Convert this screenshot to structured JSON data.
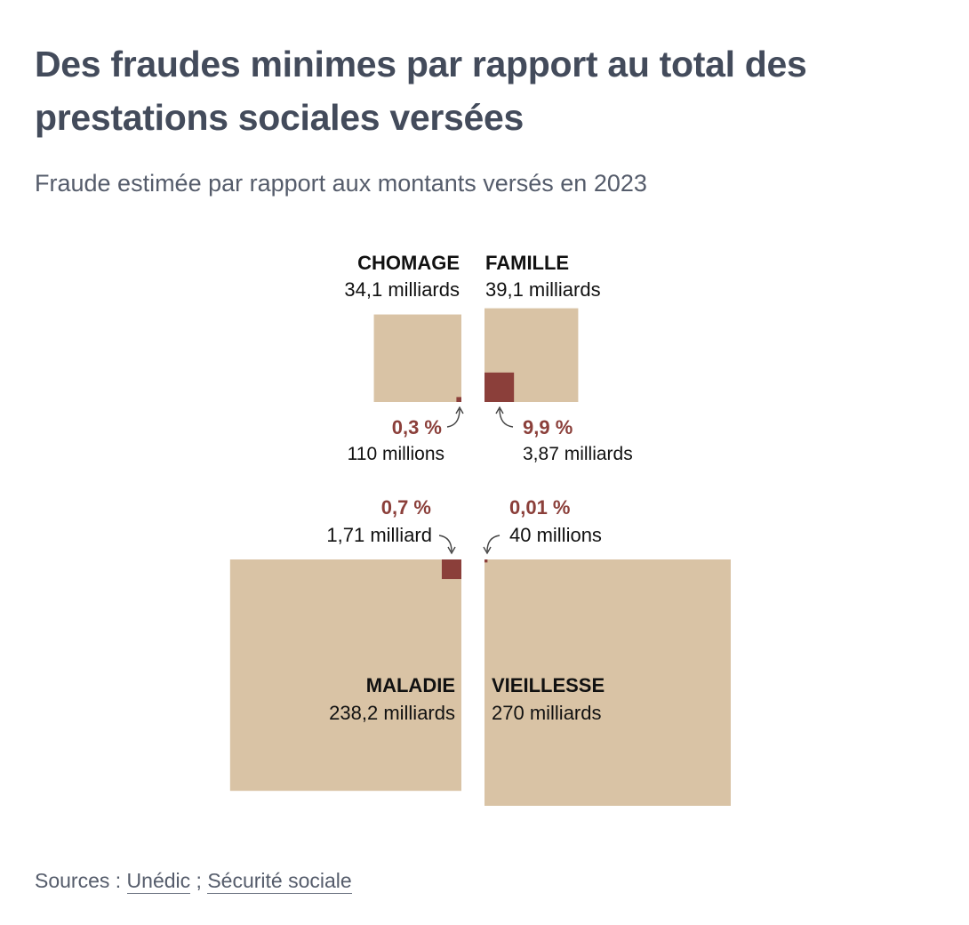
{
  "header": {
    "title": "Des fraudes minimes par rapport au total des prestations sociales versées",
    "subtitle": "Fraude estimée par rapport aux montants versés en 2023"
  },
  "footer": {
    "prefix": "Sources :",
    "sources": [
      "Unédic",
      "Sécurité sociale"
    ],
    "separator": ";"
  },
  "colors": {
    "total": "#d9c3a5",
    "fraud": "#8b3f3a",
    "title": "#434b5b",
    "text": "#111111"
  },
  "chart_data": {
    "type": "proportional-area",
    "title": "Des fraudes minimes par rapport au total des prestations sociales versées",
    "subtitle": "Fraude estimée par rapport aux montants versés en 2023",
    "unit": "milliards d'euros",
    "series": [
      {
        "name": "CHOMAGE",
        "total_label": "34,1 milliards",
        "total_value": 34.1,
        "fraud_pct_label": "0,3 %",
        "fraud_amount_label": "110 millions",
        "fraud_value": 0.11,
        "quadrant": "top-left"
      },
      {
        "name": "FAMILLE",
        "total_label": "39,1 milliards",
        "total_value": 39.1,
        "fraud_pct_label": "9,9 %",
        "fraud_amount_label": "3,87 milliards",
        "fraud_value": 3.87,
        "quadrant": "top-right"
      },
      {
        "name": "MALADIE",
        "total_label": "238,2 milliards",
        "total_value": 238.2,
        "fraud_pct_label": "0,7 %",
        "fraud_amount_label": "1,71 milliard",
        "fraud_value": 1.71,
        "quadrant": "bottom-left"
      },
      {
        "name": "VIEILLESSE",
        "total_label": "270 milliards",
        "total_value": 270,
        "fraud_pct_label": "0,01 %",
        "fraud_amount_label": "40 millions",
        "fraud_value": 0.04,
        "quadrant": "bottom-right"
      }
    ]
  }
}
